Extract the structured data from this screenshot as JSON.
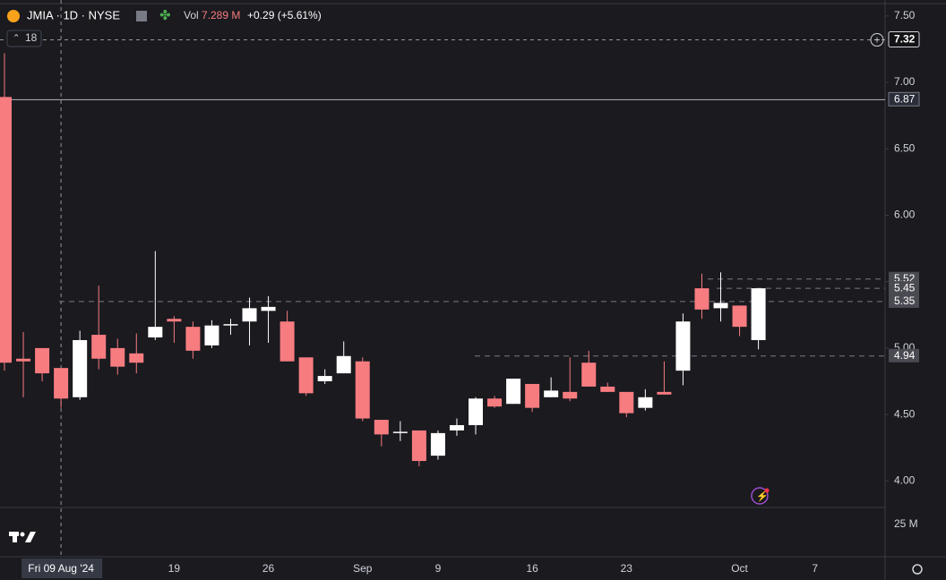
{
  "chart_data": {
    "type": "candlestick",
    "symbol": "JMIA · 1D · NYSE",
    "indicator_count": "18",
    "volume_label": "Vol",
    "volume_value": "7.289 M",
    "change": "+0.29 (+5.61%)",
    "crosshair_label": "Fri 09 Aug '24",
    "crosshair_price": 7.32,
    "categories": [
      null,
      null,
      null,
      null,
      null,
      null,
      null,
      null,
      null,
      "19",
      null,
      null,
      null,
      null,
      "26",
      null,
      null,
      null,
      null,
      "Sep",
      null,
      null,
      null,
      "9",
      null,
      null,
      null,
      null,
      "16",
      null,
      null,
      null,
      null,
      "23",
      null,
      null,
      null,
      null,
      null,
      "Oct",
      null,
      null,
      null,
      "7"
    ],
    "open": [
      6.89,
      4.92,
      5.0,
      4.85,
      4.63,
      5.1,
      5.0,
      4.96,
      5.08,
      5.22,
      5.16,
      5.02,
      5.17,
      5.2,
      5.28,
      5.2,
      4.93,
      4.75,
      4.81,
      4.9,
      4.46,
      4.36,
      4.38,
      4.19,
      4.38,
      4.42,
      4.62,
      4.58,
      4.73,
      4.63,
      4.67,
      4.89,
      4.71,
      4.67,
      4.55,
      4.67,
      4.83,
      5.45,
      5.3,
      5.32,
      5.06,
      null,
      null,
      null
    ],
    "high": [
      7.22,
      5.12,
      5.0,
      4.85,
      5.13,
      5.47,
      5.07,
      5.11,
      5.73,
      5.24,
      5.2,
      5.21,
      5.22,
      5.38,
      5.39,
      5.28,
      4.93,
      4.84,
      5.05,
      4.93,
      4.46,
      4.45,
      4.38,
      4.38,
      4.47,
      4.63,
      4.64,
      4.77,
      4.73,
      4.78,
      4.93,
      4.98,
      4.74,
      4.67,
      4.69,
      4.9,
      5.26,
      5.56,
      5.57,
      5.32,
      5.45,
      null,
      null,
      null
    ],
    "low": [
      4.83,
      4.63,
      4.75,
      4.55,
      4.61,
      4.84,
      4.8,
      4.81,
      5.06,
      5.04,
      4.92,
      5.0,
      5.1,
      5.02,
      5.04,
      4.9,
      4.64,
      4.73,
      4.81,
      4.45,
      4.26,
      4.3,
      4.11,
      4.16,
      4.34,
      4.35,
      4.55,
      4.58,
      4.52,
      4.63,
      4.6,
      4.71,
      4.67,
      4.48,
      4.53,
      4.65,
      4.72,
      5.22,
      5.2,
      5.09,
      4.99,
      null,
      null,
      null
    ],
    "close": [
      4.89,
      4.9,
      4.81,
      4.62,
      5.06,
      4.92,
      4.86,
      4.89,
      5.16,
      5.2,
      4.98,
      5.17,
      5.18,
      5.3,
      5.31,
      4.9,
      4.66,
      4.79,
      4.94,
      4.47,
      4.35,
      4.37,
      4.15,
      4.36,
      4.42,
      4.62,
      4.56,
      4.77,
      4.55,
      4.68,
      4.62,
      4.71,
      4.67,
      4.51,
      4.63,
      4.65,
      5.2,
      5.29,
      5.34,
      5.16,
      5.45,
      null,
      null,
      null
    ],
    "up_color": "#ffffff",
    "down_color": "#f77c80",
    "ylim": [
      3.8,
      7.62
    ],
    "yticks": [
      {
        "value": 4,
        "label": "4.00"
      },
      {
        "value": 4.5,
        "label": "4.50"
      },
      {
        "value": 5,
        "label": "5.00"
      },
      {
        "value": 5.5,
        "label": "5.50"
      },
      {
        "value": 6,
        "label": "6.00"
      },
      {
        "value": 6.5,
        "label": "6.50"
      },
      {
        "value": 7,
        "label": "7.00"
      },
      {
        "value": 7.5,
        "label": "7.50"
      }
    ],
    "volume_yticks": [
      {
        "value": 25000000,
        "label": "25 M"
      }
    ],
    "price_lines": [
      6.87,
      5.52,
      5.45,
      5.35,
      4.94
    ],
    "grid": false
  }
}
